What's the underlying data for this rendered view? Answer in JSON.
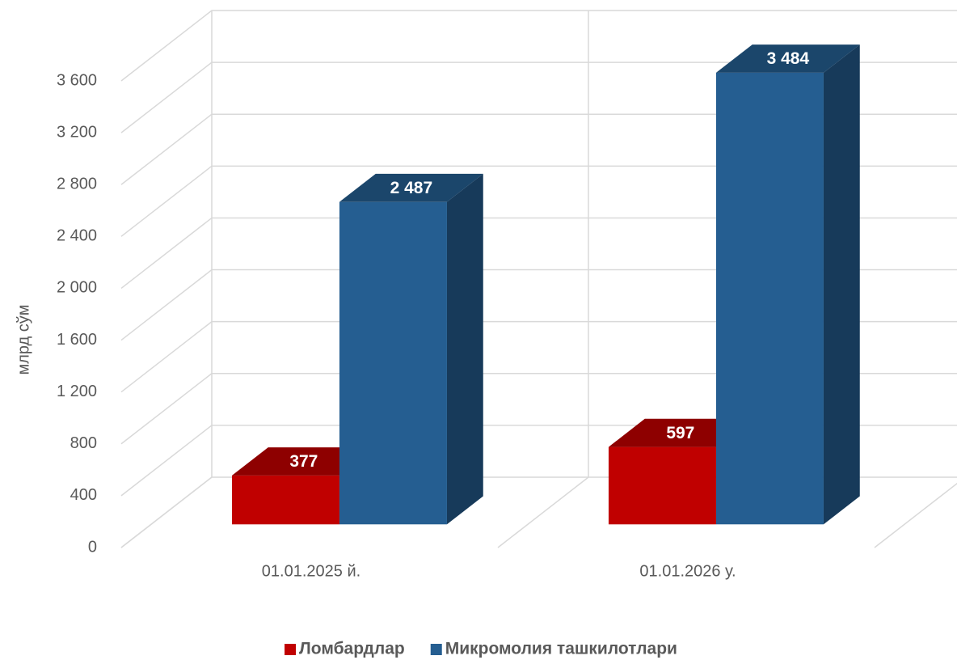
{
  "chart_data": {
    "type": "bar3d",
    "y_label": "млрд сўм",
    "categories": [
      "01.01.2025 й.",
      "01.01.2026 у."
    ],
    "series": [
      {
        "name": "Ломбардлар",
        "color": "#c00000",
        "values": [
          377,
          597
        ],
        "value_labels": [
          "377",
          "597"
        ]
      },
      {
        "name": "Микромолия ташкилотлари",
        "color": "#255e91",
        "values": [
          2487,
          3484
        ],
        "value_labels": [
          "2 487",
          "3 484"
        ]
      }
    ],
    "ylim": [
      0,
      3600
    ],
    "yticks": [
      0,
      400,
      800,
      {
        "value": 1200,
        "label": "1 200"
      },
      {
        "value": 1600,
        "label": "1 600"
      },
      {
        "value": 2000,
        "label": "2 000"
      },
      {
        "value": 2400,
        "label": "2 400"
      },
      {
        "value": 2800,
        "label": "2 800"
      },
      {
        "value": 3200,
        "label": "3 200"
      },
      {
        "value": 3600,
        "label": "3 600"
      }
    ],
    "grid": true,
    "legend": "bottom"
  }
}
